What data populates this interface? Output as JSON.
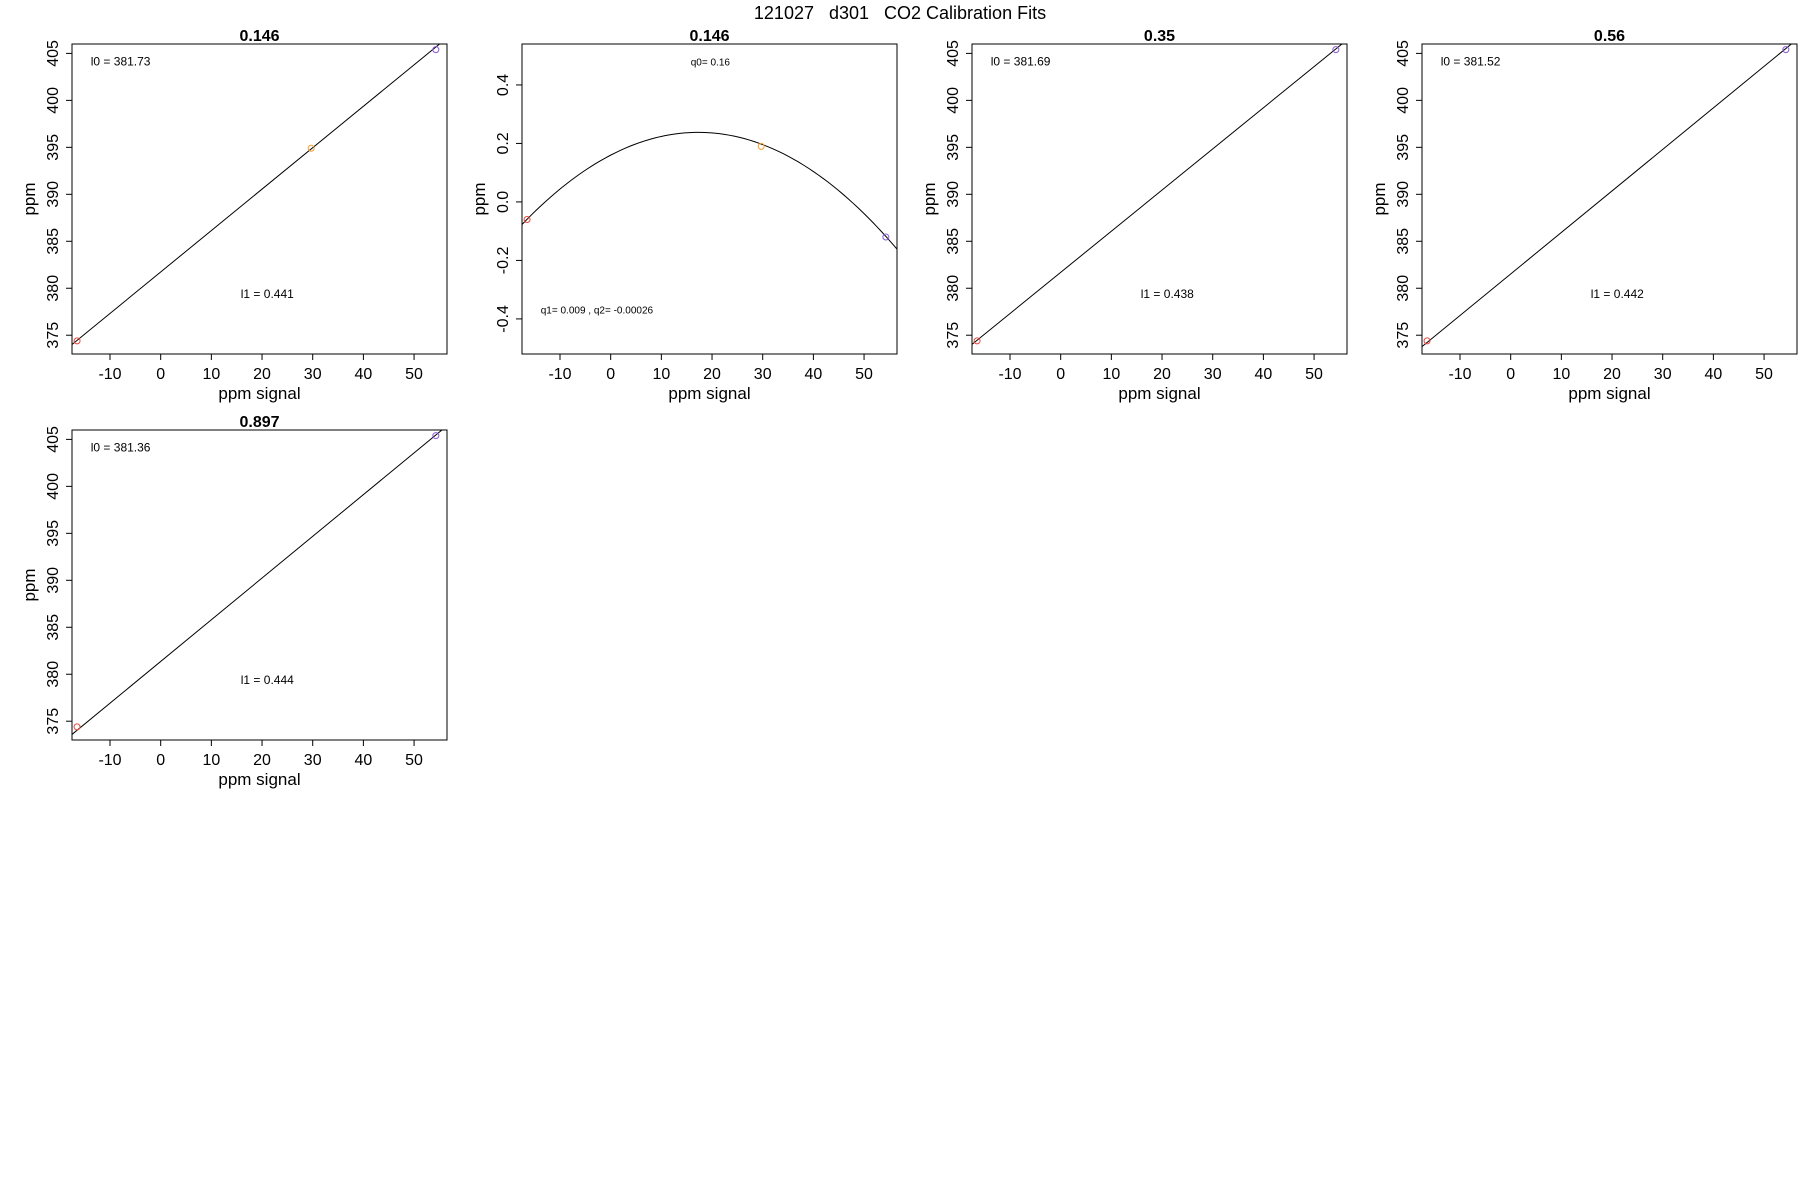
{
  "figure_title": "121027   d301   CO2 Calibration Fits",
  "colors": {
    "axis": "#000000",
    "fit_line": "#000000",
    "point_red": "#e8473a",
    "point_orange": "#f0a030",
    "point_purple": "#8a5ad8"
  },
  "chart_data": [
    {
      "type": "scatter",
      "title": "0.146",
      "xlabel": "ppm signal",
      "ylabel": "ppm",
      "xlim": [
        -17.5,
        56.5
      ],
      "ylim": [
        373,
        406
      ],
      "xticks": [
        -10,
        0,
        10,
        20,
        30,
        40,
        50
      ],
      "yticks": [
        375,
        380,
        385,
        390,
        395,
        400,
        405
      ],
      "points": [
        {
          "x": -16.5,
          "y": 374.4,
          "color": "red"
        },
        {
          "x": 29.7,
          "y": 394.9,
          "color": "orange"
        },
        {
          "x": 54.3,
          "y": 405.4,
          "color": "purple"
        }
      ],
      "fit": {
        "type": "linear",
        "intercept": 381.73,
        "slope": 0.441
      },
      "annotations": [
        "l0 =  381.73",
        "l1 =  0.441"
      ]
    },
    {
      "type": "scatter",
      "title": "0.146",
      "xlabel": "ppm signal",
      "ylabel": "ppm",
      "xlim": [
        -17.5,
        56.5
      ],
      "ylim": [
        -0.52,
        0.54
      ],
      "xticks": [
        -10,
        0,
        10,
        20,
        30,
        40,
        50
      ],
      "yticks": [
        -0.4,
        -0.2,
        0.0,
        0.2,
        0.4
      ],
      "ytick_labels": [
        "-0.4",
        "-0.2",
        "0.0",
        "0.2",
        "0.4"
      ],
      "points": [
        {
          "x": -16.5,
          "y": -0.06,
          "color": "red"
        },
        {
          "x": 29.7,
          "y": 0.19,
          "color": "orange"
        },
        {
          "x": 54.3,
          "y": -0.12,
          "color": "purple"
        }
      ],
      "fit": {
        "type": "quadratic",
        "q0": 0.16,
        "q1": 0.009,
        "q2": -0.00026
      },
      "annotations": [
        "q0= 0.16",
        "q1= 0.009 , q2= -0.00026"
      ]
    },
    {
      "type": "scatter",
      "title": "0.35",
      "xlabel": "ppm signal",
      "ylabel": "ppm",
      "xlim": [
        -17.5,
        56.5
      ],
      "ylim": [
        373,
        406
      ],
      "xticks": [
        -10,
        0,
        10,
        20,
        30,
        40,
        50
      ],
      "yticks": [
        375,
        380,
        385,
        390,
        395,
        400,
        405
      ],
      "points": [
        {
          "x": -16.5,
          "y": 374.4,
          "color": "red"
        },
        {
          "x": 54.3,
          "y": 405.4,
          "color": "purple"
        }
      ],
      "fit": {
        "type": "linear",
        "intercept": 381.69,
        "slope": 0.438
      },
      "annotations": [
        "l0 =  381.69",
        "l1 =  0.438"
      ]
    },
    {
      "type": "scatter",
      "title": "0.56",
      "xlabel": "ppm signal",
      "ylabel": "ppm",
      "xlim": [
        -17.5,
        56.5
      ],
      "ylim": [
        373,
        406
      ],
      "xticks": [
        -10,
        0,
        10,
        20,
        30,
        40,
        50
      ],
      "yticks": [
        375,
        380,
        385,
        390,
        395,
        400,
        405
      ],
      "points": [
        {
          "x": -16.5,
          "y": 374.4,
          "color": "red"
        },
        {
          "x": 54.3,
          "y": 405.4,
          "color": "purple"
        }
      ],
      "fit": {
        "type": "linear",
        "intercept": 381.52,
        "slope": 0.442
      },
      "annotations": [
        "l0 =  381.52",
        "l1 =  0.442"
      ]
    },
    {
      "type": "scatter",
      "title": "0.897",
      "xlabel": "ppm signal",
      "ylabel": "ppm",
      "xlim": [
        -17.5,
        56.5
      ],
      "ylim": [
        373,
        406
      ],
      "xticks": [
        -10,
        0,
        10,
        20,
        30,
        40,
        50
      ],
      "yticks": [
        375,
        380,
        385,
        390,
        395,
        400,
        405
      ],
      "points": [
        {
          "x": -16.5,
          "y": 374.4,
          "color": "red"
        },
        {
          "x": 54.3,
          "y": 405.4,
          "color": "purple"
        }
      ],
      "fit": {
        "type": "linear",
        "intercept": 381.36,
        "slope": 0.444
      },
      "annotations": [
        "l0 =  381.36",
        "l1 =  0.444"
      ]
    }
  ]
}
